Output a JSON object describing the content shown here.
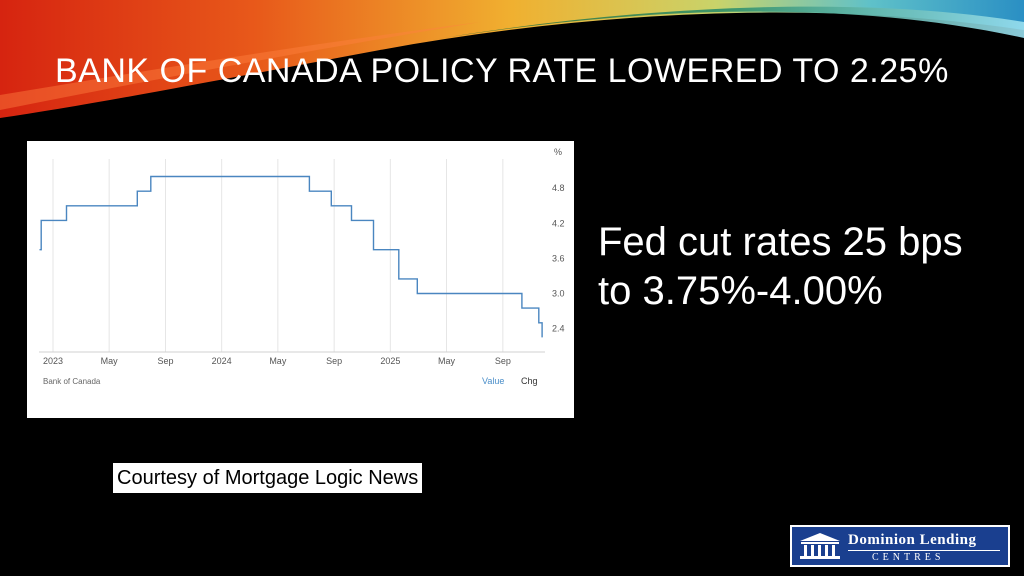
{
  "slide": {
    "title": "BANK OF CANADA POLICY RATE LOWERED TO 2.25%",
    "side_text": "Fed cut rates 25 bps to 3.75%-4.00%",
    "courtesy": "Courtesy of Mortgage Logic News",
    "logo_line1": "Dominion Lending",
    "logo_line2": "CENTRES"
  },
  "colors": {
    "background": "#000000",
    "series_line": "#4a86c0",
    "value_toggle": "#4a8ec9"
  },
  "chart_data": {
    "type": "line",
    "step": true,
    "unit_label": "%",
    "x_tick_labels": [
      "2023",
      "May",
      "Sep",
      "2024",
      "May",
      "Sep",
      "2025",
      "May",
      "Sep"
    ],
    "x_ticks": [
      2023.0,
      2023.333,
      2023.667,
      2024.0,
      2024.333,
      2024.667,
      2025.0,
      2025.333,
      2025.667
    ],
    "y_ticks": [
      2.4,
      3.0,
      3.6,
      4.2,
      4.8
    ],
    "y_tick_labels": [
      "2.4",
      "3.0",
      "3.6",
      "4.2",
      "4.8"
    ],
    "xlim": [
      2022.917,
      2025.917
    ],
    "ylim": [
      2.0,
      5.3
    ],
    "grid": "vertical",
    "source": "Bank of Canada",
    "toggles": [
      "Value",
      "Chg"
    ],
    "series": [
      {
        "x": [
          2022.92,
          2022.93,
          2023.08,
          2023.5,
          2023.58,
          2024.44,
          2024.52,
          2024.65,
          2024.77,
          2024.9,
          2025.05,
          2025.16,
          2025.78,
          2025.88
        ],
        "y": [
          3.75,
          4.25,
          4.5,
          4.75,
          5.0,
          5.0,
          4.75,
          4.5,
          4.25,
          3.75,
          3.25,
          3.0,
          2.75,
          2.5
        ],
        "end_x": 2025.9,
        "end_y": 2.25
      }
    ]
  }
}
